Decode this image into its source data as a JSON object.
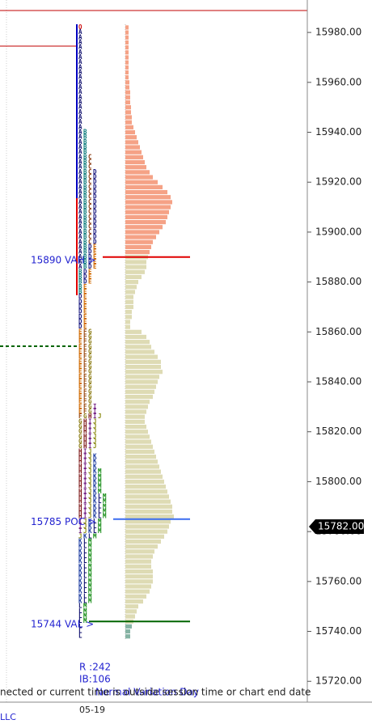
{
  "chart_data": {
    "type": "market_profile",
    "ylim": [
      15711,
      15993
    ],
    "yticks": [
      {
        "value": 15720,
        "label": "15720.00"
      },
      {
        "value": 15740,
        "label": "15740.00"
      },
      {
        "value": 15760,
        "label": "15760.00"
      },
      {
        "value": 15780,
        "label": "15780.00"
      },
      {
        "value": 15800,
        "label": "15800.00"
      },
      {
        "value": 15820,
        "label": "15820.00"
      },
      {
        "value": 15840,
        "label": "15840.00"
      },
      {
        "value": 15860,
        "label": "15860.00"
      },
      {
        "value": 15880,
        "label": "15880.00"
      },
      {
        "value": 15900,
        "label": "15900.00"
      },
      {
        "value": 15920,
        "label": "15920.00"
      },
      {
        "value": 15940,
        "label": "15940.00"
      },
      {
        "value": 15960,
        "label": "15960.00"
      },
      {
        "value": 15980,
        "label": "15980.00"
      }
    ],
    "tpo": [
      {
        "letters": "O",
        "from": 15982,
        "to": 15982
      },
      {
        "letters": "A",
        "from": 15980,
        "to": 15942
      },
      {
        "letters": "AB",
        "from": 15940,
        "to": 15932
      },
      {
        "letters": "ABC",
        "from": 15930,
        "to": 15926
      },
      {
        "letters": "ABCD",
        "from": 15924,
        "to": 15896
      },
      {
        "letters": "ABDE",
        "from": 15894,
        "to": 15886
      },
      {
        "letters": "BDE",
        "from": 15884,
        "to": 15880
      },
      {
        "letters": "BE",
        "from": 15878,
        "to": 15876
      },
      {
        "letters": "DE",
        "from": 15874,
        "to": 15862
      },
      {
        "letters": "EFG",
        "from": 15860,
        "to": 15832
      },
      {
        "letters": "EFGI",
        "from": 15830,
        "to": 15828
      },
      {
        "letters": "FGHIJ",
        "from": 15826,
        "to": 15826
      },
      {
        "letters": "GHIJ",
        "from": 15824,
        "to": 15814
      },
      {
        "letters": "HIJ",
        "from": 15812,
        "to": 15812
      },
      {
        "letters": "HIJK",
        "from": 15810,
        "to": 15806
      },
      {
        "letters": "HIJKM",
        "from": 15804,
        "to": 15796
      },
      {
        "letters": "HIJKLM",
        "from": 15794,
        "to": 15786
      },
      {
        "letters": "IJKLM",
        "from": 15784,
        "to": 15780
      },
      {
        "letters": "JKLM",
        "from": 15778,
        "to": 15778
      },
      {
        "letters": "KLM",
        "from": 15776,
        "to": 15752
      },
      {
        "letters": "LM",
        "from": 15750,
        "to": 15744
      },
      {
        "letters": "L",
        "from": 15742,
        "to": 15738
      }
    ],
    "values": [
      4,
      4,
      4,
      4,
      4,
      4,
      4,
      4,
      4,
      4,
      4,
      5,
      5,
      6,
      6,
      6,
      7,
      7,
      8,
      8,
      10,
      12,
      14,
      16,
      18,
      20,
      22,
      24,
      26,
      30,
      34,
      40,
      46,
      52,
      56,
      58,
      56,
      54,
      52,
      50,
      46,
      42,
      38,
      34,
      32,
      30,
      28,
      26,
      26,
      24,
      20,
      16,
      14,
      12,
      10,
      10,
      10,
      8,
      8,
      6,
      6,
      20,
      26,
      30,
      32,
      36,
      40,
      44,
      44,
      46,
      42,
      40,
      38,
      36,
      34,
      30,
      28,
      26,
      24,
      24,
      26,
      28,
      30,
      32,
      34,
      36,
      38,
      40,
      42,
      44,
      46,
      48,
      50,
      52,
      54,
      56,
      58,
      58,
      60,
      56,
      54,
      52,
      48,
      44,
      40,
      36,
      34,
      32,
      32,
      34,
      34,
      34,
      32,
      30,
      26,
      22,
      16,
      14,
      12,
      10,
      8,
      6,
      6
    ],
    "value_area": {
      "vah": {
        "value": 15890,
        "label": "15890 VAH >",
        "color": "#e00000"
      },
      "poc": {
        "value": 15785,
        "label": "15785 POC >",
        "color": "#3a6df0"
      },
      "val": {
        "value": 15744,
        "label": "15744 VAL >",
        "color": "#006400"
      }
    },
    "last_price": {
      "value": 15782,
      "label": "15782.00"
    },
    "bar_colors": {
      "above": "#f5a286",
      "inside": "#dedbb4",
      "below": "#86b3a4"
    },
    "letter_colors": {
      "A": "#10106e",
      "B": "#0a7a7a",
      "C": "#8a3a10",
      "D": "#1a1a80",
      "E": "#d06a00",
      "F": "#9a4a10",
      "G": "#8a7a10",
      "H": "#7a1010",
      "I": "#7a2a8a",
      "J": "#8a8a10",
      "K": "#1a3aa0",
      "L": "#10106e",
      "M": "#108a10",
      "O": "#d01010"
    },
    "stats": [
      "R :242",
      "IB:106"
    ],
    "day_type": "Normal Variation Day",
    "status": "nected or current time is outside session time or chart end date",
    "date": "05-19",
    "footer": "LLC"
  }
}
